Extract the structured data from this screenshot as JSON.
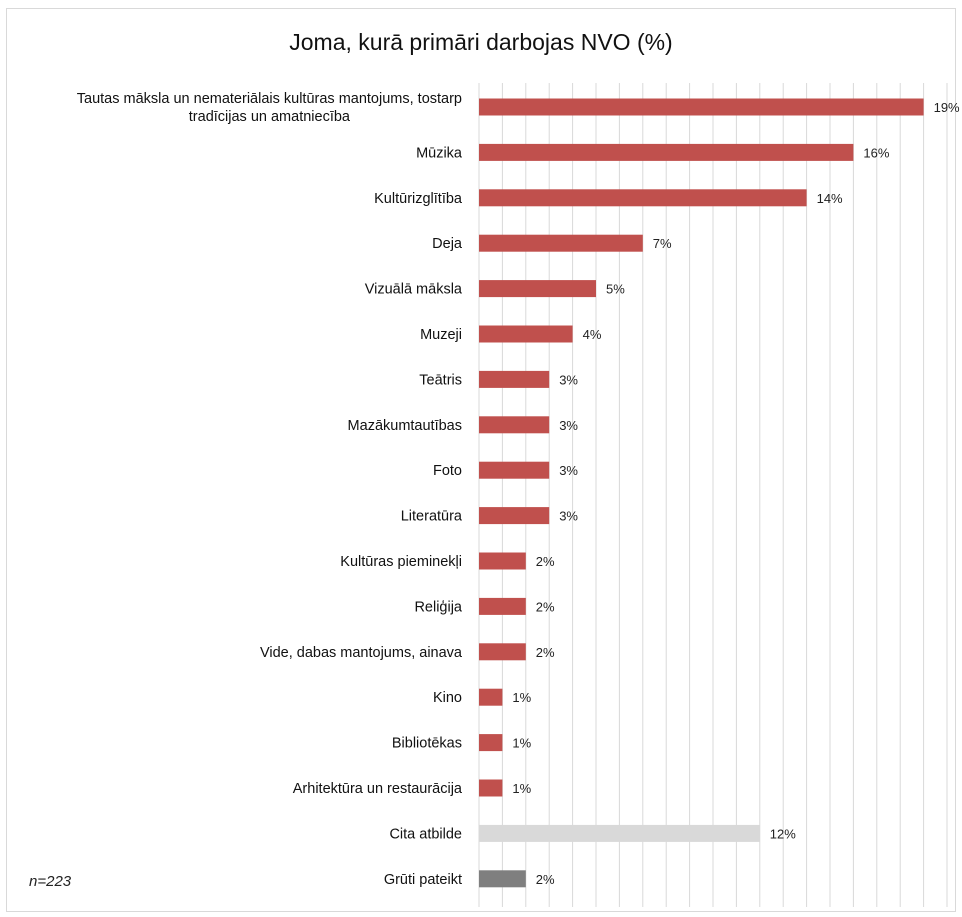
{
  "chart_data": {
    "type": "bar",
    "orientation": "horizontal",
    "title": "Joma, kurā primāri darbojas NVO (%)",
    "note": "n=223",
    "grid": true,
    "categories": [
      [
        "Tautas māksla un nemateriālais kultūras mantojums, tostarp",
        "tradīcijas un amatniecība"
      ],
      [
        "Mūzika"
      ],
      [
        "Kultūrizglītība"
      ],
      [
        "Deja"
      ],
      [
        "Vizuālā māksla"
      ],
      [
        "Muzeji"
      ],
      [
        "Teātris"
      ],
      [
        "Mazākumtautības"
      ],
      [
        "Foto"
      ],
      [
        "Literatūra"
      ],
      [
        "Kultūras pieminekļi"
      ],
      [
        "Reliģija"
      ],
      [
        "Vide, dabas mantojums, ainava"
      ],
      [
        "Kino"
      ],
      [
        "Bibliotēkas"
      ],
      [
        "Arhitektūra un restaurācija"
      ],
      [
        "Cita atbilde"
      ],
      [
        "Grūti pateikt"
      ]
    ],
    "values": [
      19,
      16,
      14,
      7,
      5,
      4,
      3,
      3,
      3,
      3,
      2,
      2,
      2,
      1,
      1,
      1,
      12,
      2
    ],
    "value_labels": [
      "19%",
      "16%",
      "14%",
      "7%",
      "5%",
      "4%",
      "3%",
      "3%",
      "3%",
      "3%",
      "2%",
      "2%",
      "2%",
      "1%",
      "1%",
      "1%",
      "12%",
      "2%"
    ],
    "bar_colors": [
      "#c0504d",
      "#c0504d",
      "#c0504d",
      "#c0504d",
      "#c0504d",
      "#c0504d",
      "#c0504d",
      "#c0504d",
      "#c0504d",
      "#c0504d",
      "#c0504d",
      "#c0504d",
      "#c0504d",
      "#c0504d",
      "#c0504d",
      "#c0504d",
      "#d9d9d9",
      "#7f7f7f"
    ],
    "xlim": [
      0,
      20
    ]
  }
}
